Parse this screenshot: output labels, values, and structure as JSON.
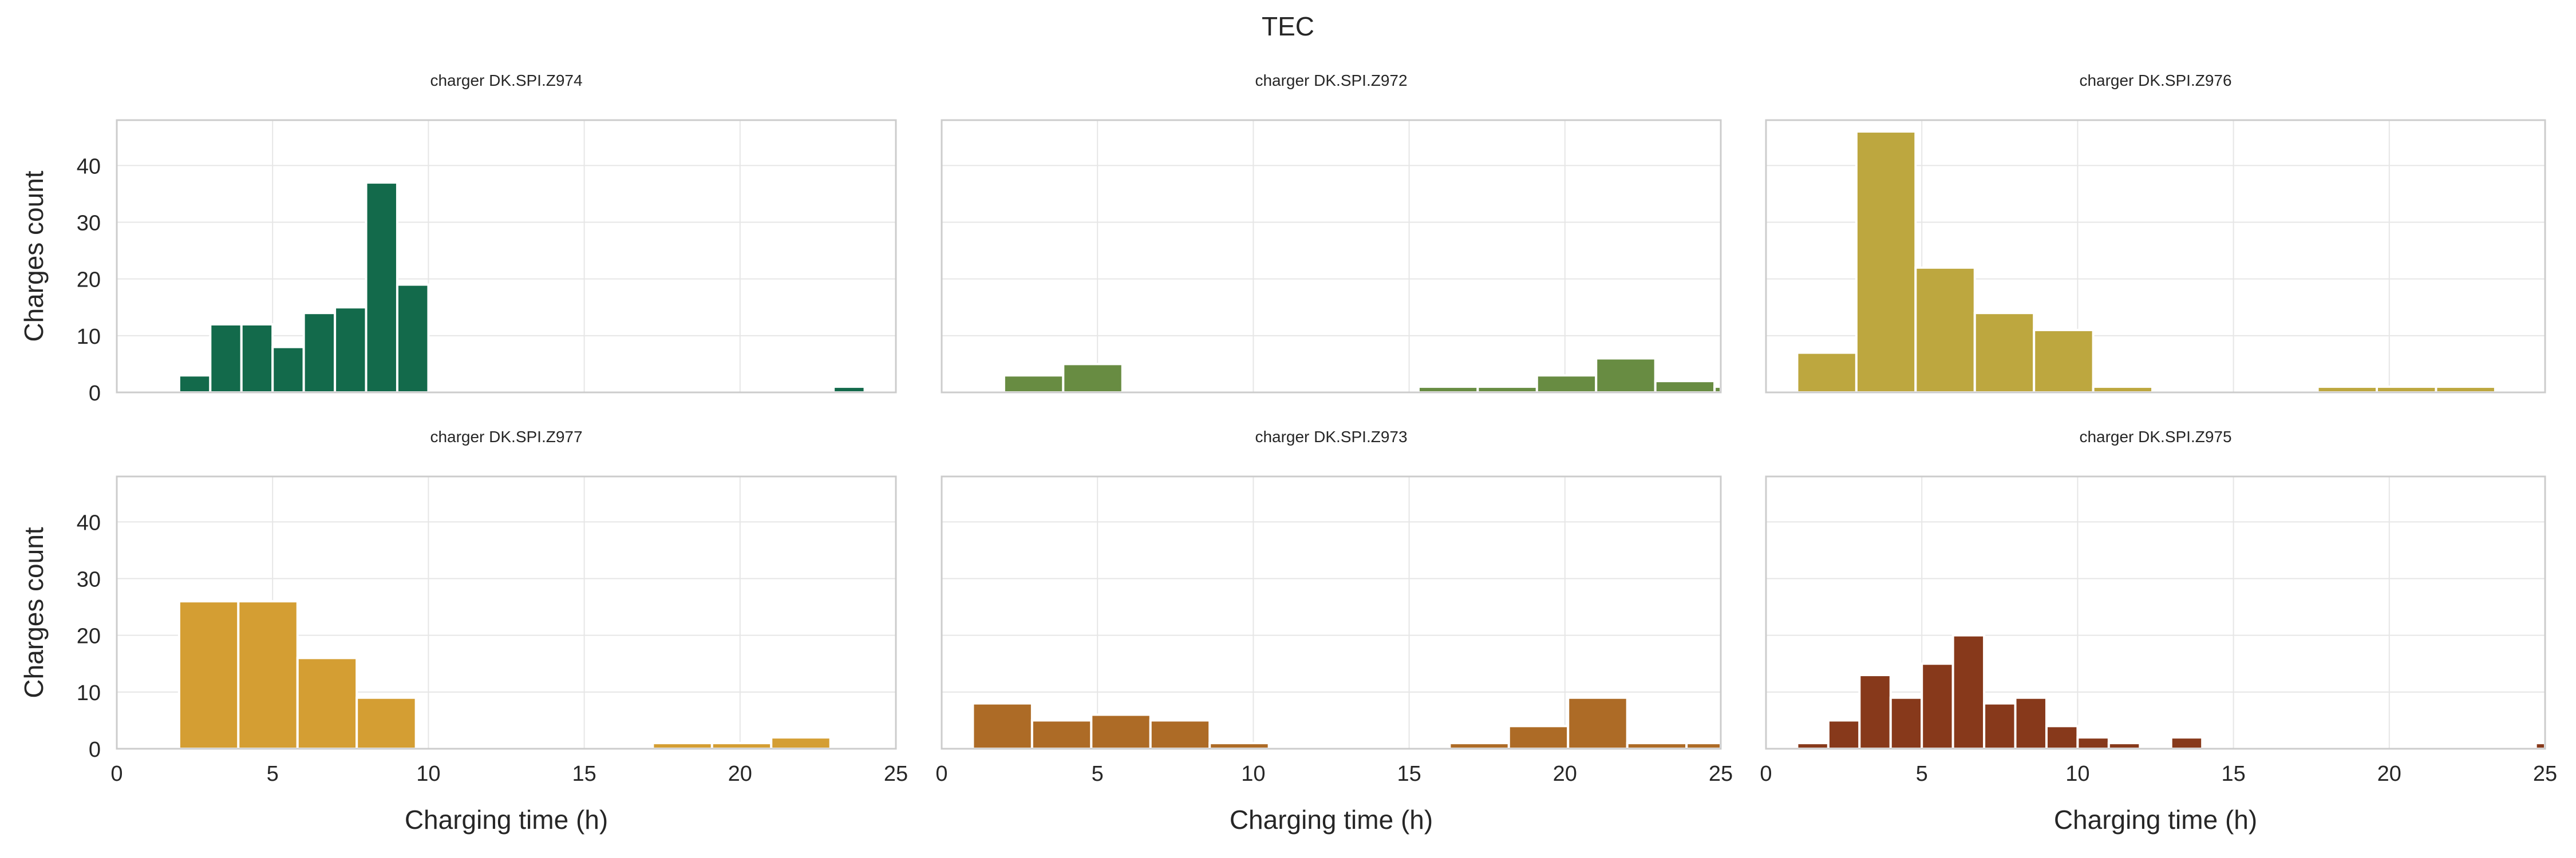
{
  "figure": {
    "title": "TEC",
    "ylabel": "Charges count",
    "xlabel": "Charging time (h)"
  },
  "chart_data": [
    {
      "type": "bar",
      "title": "charger DK.SPI.Z974",
      "color": "#136a4b",
      "xlim": [
        0,
        25
      ],
      "ylim": [
        0,
        48
      ],
      "xticks": [
        0,
        5,
        10,
        15,
        20,
        25
      ],
      "yticks": [
        0,
        10,
        20,
        30,
        40
      ],
      "bins": [
        [
          2.0,
          3.0
        ],
        [
          3.0,
          4.0
        ],
        [
          4.0,
          5.0
        ],
        [
          5.0,
          6.0
        ],
        [
          6.0,
          7.0
        ],
        [
          7.0,
          8.0
        ],
        [
          8.0,
          9.0
        ],
        [
          9.0,
          10.0
        ],
        [
          23.0,
          24.0
        ]
      ],
      "values": [
        3,
        12,
        12,
        8,
        14,
        15,
        37,
        19,
        1
      ]
    },
    {
      "type": "bar",
      "title": "charger DK.SPI.Z972",
      "color": "#688c42",
      "xlim": [
        0,
        25
      ],
      "ylim": [
        0,
        48
      ],
      "xticks": [
        0,
        5,
        10,
        15,
        20,
        25
      ],
      "yticks": [
        0,
        10,
        20,
        30,
        40
      ],
      "bins": [
        [
          2.0,
          3.9
        ],
        [
          3.9,
          5.8
        ],
        [
          15.3,
          17.2
        ],
        [
          17.2,
          19.1
        ],
        [
          19.1,
          21.0
        ],
        [
          21.0,
          22.9
        ],
        [
          22.9,
          24.8
        ],
        [
          24.8,
          25.0
        ]
      ],
      "values": [
        3,
        5,
        1,
        1,
        3,
        6,
        2,
        1
      ]
    },
    {
      "type": "bar",
      "title": "charger DK.SPI.Z976",
      "color": "#bda73f",
      "xlim": [
        0,
        25
      ],
      "ylim": [
        0,
        48
      ],
      "xticks": [
        0,
        5,
        10,
        15,
        20,
        25
      ],
      "yticks": [
        0,
        10,
        20,
        30,
        40
      ],
      "bins": [
        [
          1.0,
          2.9
        ],
        [
          2.9,
          4.8
        ],
        [
          4.8,
          6.7
        ],
        [
          6.7,
          8.6
        ],
        [
          8.6,
          10.5
        ],
        [
          10.5,
          12.4
        ],
        [
          17.7,
          19.6
        ],
        [
          19.6,
          21.5
        ],
        [
          21.5,
          23.4
        ]
      ],
      "values": [
        7,
        46,
        22,
        14,
        11,
        1,
        1,
        1,
        1
      ]
    },
    {
      "type": "bar",
      "title": "charger DK.SPI.Z977",
      "color": "#d49e33",
      "xlim": [
        0,
        25
      ],
      "ylim": [
        0,
        48
      ],
      "xticks": [
        0,
        5,
        10,
        15,
        20,
        25
      ],
      "yticks": [
        0,
        10,
        20,
        30,
        40
      ],
      "bins": [
        [
          2.0,
          3.9
        ],
        [
          3.9,
          5.8
        ],
        [
          5.8,
          7.7
        ],
        [
          7.7,
          9.6
        ],
        [
          17.2,
          19.1
        ],
        [
          19.1,
          21.0
        ],
        [
          21.0,
          22.9
        ]
      ],
      "values": [
        26,
        26,
        16,
        9,
        1,
        1,
        2
      ]
    },
    {
      "type": "bar",
      "title": "charger DK.SPI.Z973",
      "color": "#ad6b26",
      "xlim": [
        0,
        25
      ],
      "ylim": [
        0,
        48
      ],
      "xticks": [
        0,
        5,
        10,
        15,
        20,
        25
      ],
      "yticks": [
        0,
        10,
        20,
        30,
        40
      ],
      "bins": [
        [
          1.0,
          2.9
        ],
        [
          2.9,
          4.8
        ],
        [
          4.8,
          6.7
        ],
        [
          6.7,
          8.6
        ],
        [
          8.6,
          10.5
        ],
        [
          16.3,
          18.2
        ],
        [
          18.2,
          20.1
        ],
        [
          20.1,
          22.0
        ],
        [
          22.0,
          23.9
        ],
        [
          23.9,
          25.0
        ]
      ],
      "values": [
        8,
        5,
        6,
        5,
        1,
        1,
        4,
        9,
        1,
        1
      ]
    },
    {
      "type": "bar",
      "title": "charger DK.SPI.Z975",
      "color": "#87391b",
      "xlim": [
        0,
        25
      ],
      "ylim": [
        0,
        48
      ],
      "xticks": [
        0,
        5,
        10,
        15,
        20,
        25
      ],
      "yticks": [
        0,
        10,
        20,
        30,
        40
      ],
      "bins": [
        [
          1.0,
          2.0
        ],
        [
          2.0,
          3.0
        ],
        [
          3.0,
          4.0
        ],
        [
          4.0,
          5.0
        ],
        [
          5.0,
          6.0
        ],
        [
          6.0,
          7.0
        ],
        [
          7.0,
          8.0
        ],
        [
          8.0,
          9.0
        ],
        [
          9.0,
          10.0
        ],
        [
          10.0,
          11.0
        ],
        [
          11.0,
          12.0
        ],
        [
          13.0,
          14.0
        ],
        [
          24.7,
          25.0
        ]
      ],
      "values": [
        1,
        5,
        13,
        9,
        15,
        20,
        8,
        9,
        4,
        2,
        1,
        2,
        1
      ]
    }
  ]
}
